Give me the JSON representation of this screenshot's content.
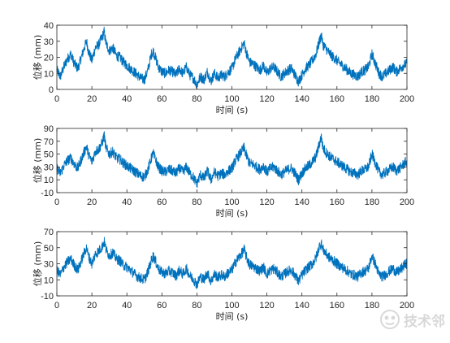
{
  "chart_data": [
    {
      "type": "line",
      "xlabel": "时间 (s)",
      "ylabel": "位移 (mm)",
      "xlim": [
        0,
        200
      ],
      "ylim": [
        0,
        40
      ],
      "xticks": [
        0,
        20,
        40,
        60,
        80,
        100,
        120,
        140,
        160,
        180,
        200
      ],
      "yticks": [
        0,
        10,
        20,
        30,
        40
      ],
      "color": "#0072BD",
      "grid": false,
      "series": [
        {
          "x": [
            0,
            2,
            4,
            6,
            8,
            10,
            12,
            14,
            16,
            17,
            18,
            20,
            22,
            24,
            26,
            27,
            28,
            30,
            32,
            34,
            36,
            38,
            40,
            42,
            44,
            46,
            48,
            50,
            52,
            54,
            55,
            56,
            58,
            60,
            62,
            64,
            66,
            68,
            70,
            72,
            74,
            76,
            78,
            80,
            82,
            84,
            86,
            88,
            90,
            92,
            94,
            96,
            98,
            100,
            102,
            104,
            106,
            107,
            108,
            110,
            112,
            114,
            116,
            118,
            120,
            122,
            124,
            126,
            128,
            130,
            132,
            134,
            136,
            138,
            140,
            142,
            144,
            146,
            148,
            150,
            151,
            152,
            154,
            156,
            158,
            160,
            162,
            164,
            166,
            168,
            170,
            172,
            174,
            176,
            178,
            180,
            182,
            184,
            186,
            188,
            190,
            192,
            194,
            196,
            198,
            200
          ],
          "y": [
            12,
            8,
            14,
            19,
            22,
            16,
            13,
            20,
            27,
            30,
            24,
            18,
            26,
            28,
            33,
            36,
            29,
            24,
            26,
            21,
            20,
            17,
            15,
            13,
            11,
            9,
            7,
            6,
            12,
            22,
            24,
            21,
            14,
            11,
            10,
            12,
            11,
            9,
            13,
            10,
            14,
            9,
            7,
            3,
            8,
            6,
            11,
            5,
            10,
            7,
            9,
            8,
            11,
            13,
            19,
            23,
            27,
            29,
            24,
            17,
            16,
            14,
            12,
            15,
            10,
            13,
            14,
            11,
            8,
            10,
            12,
            13,
            9,
            5,
            9,
            13,
            15,
            18,
            22,
            30,
            34,
            28,
            25,
            22,
            20,
            18,
            16,
            14,
            12,
            10,
            9,
            8,
            11,
            12,
            14,
            22,
            16,
            10,
            8,
            10,
            12,
            14,
            11,
            13,
            15,
            16
          ]
        }
      ]
    },
    {
      "type": "line",
      "xlabel": "时间 (s)",
      "ylabel": "位移 (mm)",
      "xlim": [
        0,
        200
      ],
      "ylim": [
        -10,
        90
      ],
      "xticks": [
        0,
        20,
        40,
        60,
        80,
        100,
        120,
        140,
        160,
        180,
        200
      ],
      "yticks": [
        -10,
        10,
        30,
        50,
        70,
        90
      ],
      "color": "#0072BD",
      "grid": false,
      "series": [
        {
          "x": [
            0,
            2,
            4,
            6,
            8,
            10,
            12,
            14,
            16,
            17,
            18,
            20,
            22,
            24,
            26,
            27,
            28,
            30,
            32,
            34,
            36,
            38,
            40,
            42,
            44,
            46,
            48,
            50,
            52,
            54,
            55,
            56,
            58,
            60,
            62,
            64,
            66,
            68,
            70,
            72,
            74,
            76,
            78,
            80,
            82,
            84,
            86,
            88,
            90,
            92,
            94,
            96,
            98,
            100,
            102,
            104,
            106,
            107,
            108,
            110,
            112,
            114,
            116,
            118,
            120,
            122,
            124,
            126,
            128,
            130,
            132,
            134,
            136,
            138,
            140,
            142,
            144,
            146,
            148,
            150,
            151,
            152,
            154,
            156,
            158,
            160,
            162,
            164,
            166,
            168,
            170,
            172,
            174,
            176,
            178,
            180,
            182,
            184,
            186,
            188,
            190,
            192,
            194,
            196,
            198,
            200
          ],
          "y": [
            28,
            20,
            32,
            40,
            44,
            34,
            28,
            42,
            56,
            62,
            50,
            38,
            54,
            58,
            68,
            80,
            60,
            50,
            54,
            44,
            42,
            36,
            32,
            28,
            24,
            20,
            16,
            14,
            26,
            44,
            52,
            44,
            30,
            24,
            22,
            26,
            24,
            20,
            28,
            22,
            30,
            20,
            14,
            4,
            18,
            12,
            24,
            10,
            22,
            16,
            20,
            18,
            24,
            28,
            40,
            48,
            56,
            60,
            50,
            36,
            34,
            30,
            26,
            32,
            22,
            28,
            30,
            24,
            18,
            22,
            26,
            28,
            20,
            10,
            20,
            28,
            32,
            38,
            46,
            66,
            78,
            60,
            52,
            46,
            42,
            38,
            34,
            30,
            26,
            22,
            20,
            18,
            24,
            26,
            30,
            50,
            36,
            22,
            18,
            22,
            26,
            30,
            24,
            28,
            34,
            40
          ]
        }
      ]
    },
    {
      "type": "line",
      "xlabel": "时间 (s)",
      "ylabel": "位移 (mm)",
      "xlim": [
        0,
        200
      ],
      "ylim": [
        -10,
        70
      ],
      "xticks": [
        0,
        20,
        40,
        60,
        80,
        100,
        120,
        140,
        160,
        180,
        200
      ],
      "yticks": [
        -10,
        10,
        30,
        50,
        70
      ],
      "color": "#0072BD",
      "grid": false,
      "series": [
        {
          "x": [
            0,
            2,
            4,
            6,
            8,
            10,
            12,
            14,
            16,
            17,
            18,
            20,
            22,
            24,
            26,
            27,
            28,
            30,
            32,
            34,
            36,
            38,
            40,
            42,
            44,
            46,
            48,
            50,
            52,
            54,
            55,
            56,
            58,
            60,
            62,
            64,
            66,
            68,
            70,
            72,
            74,
            76,
            78,
            80,
            82,
            84,
            86,
            88,
            90,
            92,
            94,
            96,
            98,
            100,
            102,
            104,
            106,
            107,
            108,
            110,
            112,
            114,
            116,
            118,
            120,
            122,
            124,
            126,
            128,
            130,
            132,
            134,
            136,
            138,
            140,
            142,
            144,
            146,
            148,
            150,
            151,
            152,
            154,
            156,
            158,
            160,
            162,
            164,
            166,
            168,
            170,
            172,
            174,
            176,
            178,
            180,
            182,
            184,
            186,
            188,
            190,
            192,
            194,
            196,
            198,
            200
          ],
          "y": [
            22,
            16,
            26,
            32,
            36,
            28,
            22,
            34,
            46,
            50,
            40,
            30,
            42,
            46,
            52,
            58,
            48,
            40,
            44,
            36,
            34,
            28,
            26,
            22,
            18,
            14,
            12,
            10,
            20,
            34,
            40,
            35,
            24,
            19,
            18,
            21,
            19,
            15,
            22,
            17,
            24,
            15,
            11,
            4,
            14,
            10,
            19,
            8,
            17,
            13,
            16,
            14,
            19,
            22,
            32,
            38,
            44,
            48,
            40,
            29,
            27,
            24,
            21,
            26,
            17,
            22,
            24,
            19,
            14,
            17,
            21,
            22,
            16,
            8,
            16,
            22,
            26,
            30,
            37,
            52,
            56,
            48,
            42,
            37,
            34,
            30,
            27,
            24,
            21,
            17,
            16,
            14,
            19,
            21,
            24,
            40,
            29,
            17,
            14,
            17,
            21,
            24,
            19,
            22,
            27,
            31
          ]
        }
      ]
    }
  ],
  "watermark": {
    "text": "技术邻",
    "icon": "robot-face-icon"
  }
}
